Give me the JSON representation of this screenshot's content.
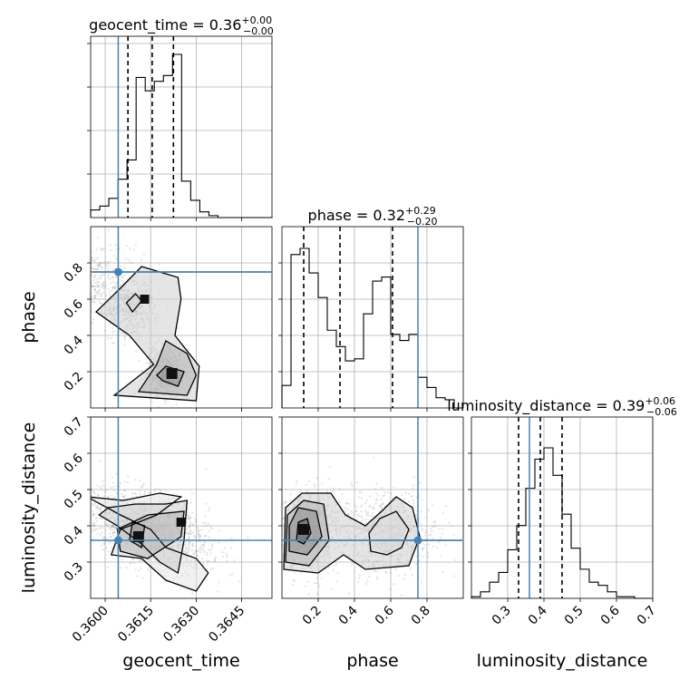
{
  "colors": {
    "truth": "#4682b4",
    "hist": "#000000",
    "quantile": "#000000",
    "grid": "#b0b0b0"
  },
  "chart_data": {
    "type": "corner",
    "parameters": [
      "geocent_time",
      "phase",
      "luminosity_distance"
    ],
    "truth": {
      "geocent_time": 0.36043,
      "phase": 0.75,
      "luminosity_distance": 0.36
    },
    "ranges": {
      "geocent_time": [
        0.35952,
        0.3655
      ],
      "phase": [
        0.0,
        1.0
      ],
      "luminosity_distance": [
        0.2,
        0.7
      ]
    },
    "ticks": {
      "geocent_time": [
        "0.3600",
        "0.3615",
        "0.3630",
        "0.3645"
      ],
      "phase": [
        "0.2",
        "0.4",
        "0.6",
        "0.8"
      ],
      "luminosity_distance": [
        "0.3",
        "0.4",
        "0.5",
        "0.6",
        "0.7"
      ]
    },
    "titles": {
      "geocent_time": {
        "name": "geocent_time",
        "median": "0.36",
        "plus": "+0.00",
        "minus": "−0.00"
      },
      "phase": {
        "name": "phase",
        "median": "0.32",
        "plus": "+0.29",
        "minus": "−0.20"
      },
      "luminosity_distance": {
        "name": "luminosity_distance",
        "median": "0.39",
        "plus": "+0.06",
        "minus": "−0.06"
      }
    },
    "quantiles": {
      "geocent_time": [
        0.36075,
        0.36155,
        0.36225
      ],
      "phase": [
        0.12,
        0.32,
        0.61
      ],
      "luminosity_distance": [
        0.33,
        0.39,
        0.45
      ]
    },
    "histograms": {
      "geocent_time": {
        "edges": [
          0.35952,
          0.35982,
          0.36012,
          0.36042,
          0.36072,
          0.36102,
          0.36132,
          0.36162,
          0.36192,
          0.36222,
          0.36252,
          0.36282,
          0.36312,
          0.36342,
          0.36372,
          0.36402,
          0.36432,
          0.36462,
          0.36492,
          0.36522,
          0.36552
        ],
        "counts": [
          0.04,
          0.06,
          0.1,
          0.2,
          0.3,
          0.73,
          0.66,
          0.71,
          0.74,
          0.85,
          0.19,
          0.09,
          0.03,
          0.01,
          0.0,
          0.0,
          0.0,
          0.0,
          0.0,
          0.0
        ]
      },
      "phase": {
        "edges": [
          0.0,
          0.05,
          0.1,
          0.15,
          0.2,
          0.25,
          0.3,
          0.35,
          0.4,
          0.45,
          0.5,
          0.55,
          0.6,
          0.65,
          0.7,
          0.75,
          0.8,
          0.85,
          0.9,
          0.95,
          1.0
        ],
        "counts": [
          0.11,
          0.75,
          0.78,
          0.66,
          0.54,
          0.38,
          0.3,
          0.23,
          0.24,
          0.46,
          0.62,
          0.64,
          0.36,
          0.33,
          0.36,
          0.15,
          0.1,
          0.05,
          0.04,
          0.0
        ]
      },
      "luminosity_distance": {
        "edges": [
          0.2,
          0.225,
          0.25,
          0.275,
          0.3,
          0.325,
          0.35,
          0.375,
          0.4,
          0.425,
          0.45,
          0.475,
          0.5,
          0.525,
          0.55,
          0.575,
          0.6,
          0.625,
          0.65,
          0.675,
          0.7
        ],
        "counts": [
          0.01,
          0.04,
          0.1,
          0.16,
          0.3,
          0.45,
          0.68,
          0.86,
          0.93,
          0.76,
          0.52,
          0.31,
          0.18,
          0.1,
          0.08,
          0.04,
          0.01,
          0.01,
          0.0,
          0.0
        ]
      }
    },
    "grid": true
  }
}
